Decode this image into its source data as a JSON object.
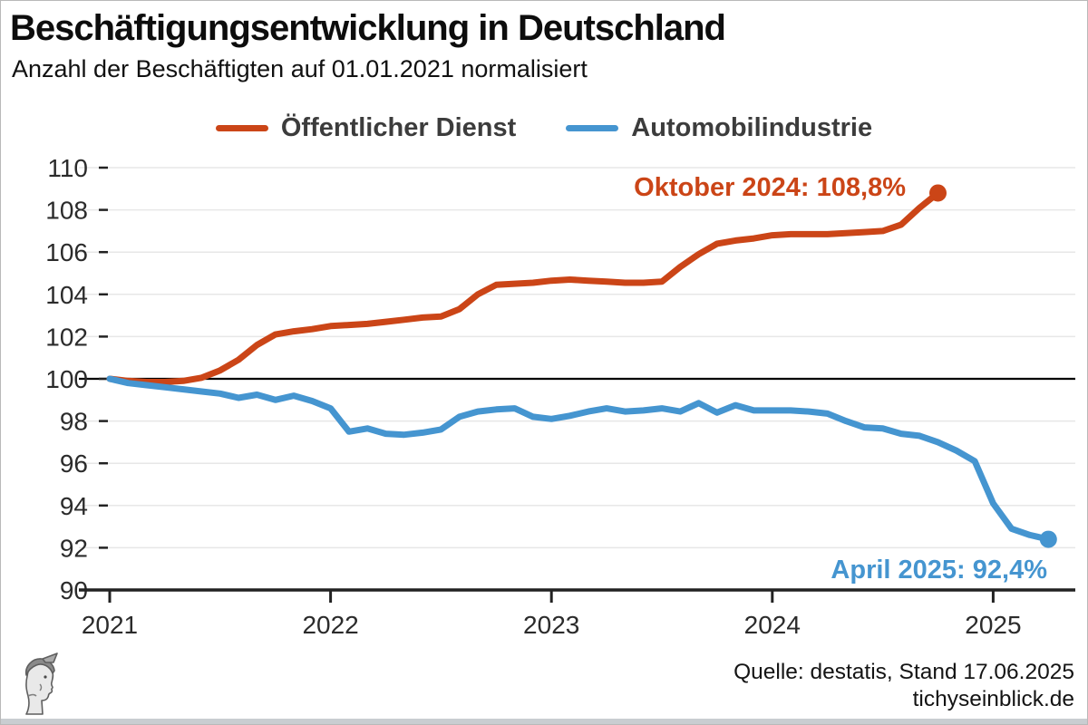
{
  "header": {
    "title": "Beschäftigungsentwicklung in Deutschland",
    "subtitle": "Anzahl der Beschäftigten auf 01.01.2021 normalisiert"
  },
  "legend": {
    "items": [
      {
        "label": "Öffentlicher Dienst",
        "color": "#cb4517"
      },
      {
        "label": "Automobilindustrie",
        "color": "#4595d0"
      }
    ]
  },
  "footer": {
    "source": "Quelle: destatis, Stand 17.06.2025",
    "site": "tichyseinblick.de"
  },
  "logo": {
    "name": "mercury-head-engraving"
  },
  "colors": {
    "red": "#cb4517",
    "blue": "#4595d0",
    "baseline": "#000000",
    "grid": "#e7e7e7",
    "axis": "#222222"
  },
  "chart_data": {
    "type": "line",
    "title": "Beschäftigungsentwicklung in Deutschland",
    "subtitle": "Anzahl der Beschäftigten auf 01.01.2021 normalisiert",
    "x_unit": "months from Jan 2021",
    "x_ticks": [
      {
        "label": "2021",
        "month": 0
      },
      {
        "label": "2022",
        "month": 12
      },
      {
        "label": "2023",
        "month": 24
      },
      {
        "label": "2024",
        "month": 36
      },
      {
        "label": "2025",
        "month": 48
      }
    ],
    "ylim": [
      90,
      110
    ],
    "y_ticks": [
      90,
      92,
      94,
      96,
      98,
      100,
      102,
      104,
      106,
      108,
      110
    ],
    "baseline": 100,
    "grid": "horizontal-only",
    "legend_position": "top-center",
    "series": [
      {
        "name": "Öffentlicher Dienst",
        "color": "#cb4517",
        "start": "2021-01",
        "end": "2024-10",
        "values": [
          100.0,
          99.9,
          99.85,
          99.85,
          99.9,
          100.05,
          100.4,
          100.9,
          101.6,
          102.1,
          102.25,
          102.35,
          102.5,
          102.55,
          102.6,
          102.7,
          102.8,
          102.9,
          102.95,
          103.3,
          104.0,
          104.45,
          104.5,
          104.55,
          104.65,
          104.7,
          104.65,
          104.6,
          104.55,
          104.55,
          104.6,
          105.3,
          105.9,
          106.4,
          106.55,
          106.65,
          106.8,
          106.85,
          106.85,
          106.85,
          106.9,
          106.95,
          107.0,
          107.3,
          108.1,
          108.8
        ]
      },
      {
        "name": "Automobilindustrie",
        "color": "#4595d0",
        "start": "2021-01",
        "end": "2025-04",
        "values": [
          100.0,
          99.8,
          99.7,
          99.6,
          99.5,
          99.4,
          99.3,
          99.1,
          99.25,
          99.0,
          99.2,
          98.95,
          98.6,
          97.5,
          97.65,
          97.4,
          97.35,
          97.45,
          97.6,
          98.2,
          98.45,
          98.55,
          98.6,
          98.2,
          98.1,
          98.25,
          98.45,
          98.6,
          98.45,
          98.5,
          98.6,
          98.45,
          98.85,
          98.4,
          98.75,
          98.5,
          98.5,
          98.5,
          98.45,
          98.35,
          98.0,
          97.7,
          97.65,
          97.4,
          97.3,
          97.0,
          96.6,
          96.1,
          94.1,
          92.9,
          92.6,
          92.4
        ]
      }
    ],
    "annotations": [
      {
        "text": "Oktober 2024: 108,8%",
        "color": "#cb4517",
        "series": "Öffentlicher Dienst",
        "value": 108.8
      },
      {
        "text": "April 2025: 92,4%",
        "color": "#4595d0",
        "series": "Automobilindustrie",
        "value": 92.4
      }
    ]
  }
}
